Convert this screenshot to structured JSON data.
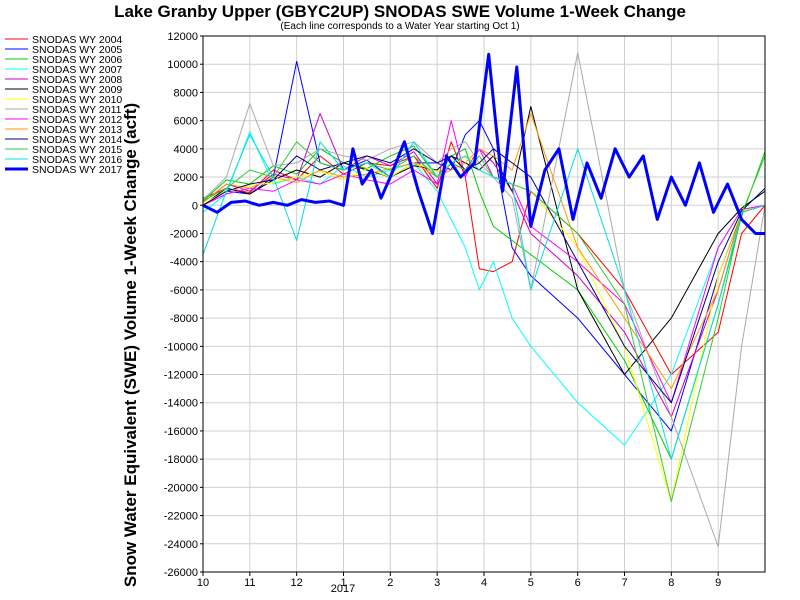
{
  "chart_data": {
    "type": "line",
    "title": "Lake Granby Upper (GBYC2UP) SNODAS SWE Volume 1-Week Change",
    "subtitle": "(Each line corresponds to a Water Year starting Oct 1)",
    "ylabel": "Snow Water Equivalent (SWE) Volume 1-Week Change (acft)",
    "xlabel": "",
    "x_ticks": [
      "10",
      "11",
      "12",
      "1",
      "2",
      "3",
      "4",
      "5",
      "6",
      "7",
      "8",
      "9"
    ],
    "x_year_label": "2017",
    "ylim": [
      -26000,
      12000
    ],
    "y_ticks": [
      12000,
      10000,
      8000,
      6000,
      4000,
      2000,
      0,
      -2000,
      -4000,
      -6000,
      -8000,
      -10000,
      -12000,
      -14000,
      -16000,
      -18000,
      -20000,
      -22000,
      -24000,
      -26000
    ],
    "grid": true,
    "legend_position": "left",
    "series": [
      {
        "name": "SNODAS WY 2004",
        "color": "#ff0000",
        "x": [
          0,
          0.5,
          1.0,
          1.5,
          2.0,
          2.5,
          3.0,
          3.5,
          4.0,
          4.5,
          5.0,
          5.3,
          5.6,
          5.9,
          6.2,
          6.6,
          7.0,
          8.0,
          9.0,
          10.0,
          11.0,
          11.5,
          12.0
        ],
        "values": [
          500,
          1200,
          900,
          2500,
          1800,
          3500,
          2200,
          3000,
          2800,
          3500,
          1200,
          4500,
          2000,
          -4500,
          -4700,
          -4000,
          1000,
          -2000,
          -6000,
          -12000,
          -9000,
          -2000,
          0
        ]
      },
      {
        "name": "SNODAS WY 2005",
        "color": "#0000ff",
        "x": [
          0,
          0.5,
          1.0,
          1.5,
          2.0,
          2.5,
          3.0,
          3.5,
          4.0,
          4.5,
          5.0,
          5.3,
          5.6,
          5.9,
          6.2,
          6.6,
          7.0,
          8.0,
          9.0,
          10.0,
          11.0,
          11.5,
          12.0
        ],
        "values": [
          0,
          1000,
          800,
          2000,
          10200,
          3000,
          2500,
          3200,
          2000,
          3000,
          3000,
          2500,
          5000,
          6000,
          4000,
          -3000,
          -5000,
          -8000,
          -12000,
          -16000,
          -5000,
          -500,
          0
        ]
      },
      {
        "name": "SNODAS WY 2006",
        "color": "#00cc00",
        "x": [
          0,
          0.5,
          1.0,
          1.5,
          2.0,
          2.5,
          3.0,
          3.5,
          4.0,
          4.5,
          5.0,
          5.3,
          5.6,
          5.9,
          6.2,
          6.6,
          7.0,
          8.0,
          9.0,
          10.0,
          11.0,
          11.5,
          12.0
        ],
        "values": [
          300,
          1800,
          1500,
          2800,
          2200,
          4000,
          3000,
          2600,
          3500,
          4200,
          2000,
          3500,
          4000,
          1000,
          -1500,
          -2500,
          -3500,
          -6000,
          -11000,
          -18000,
          -7000,
          -800,
          3800
        ]
      },
      {
        "name": "SNODAS WY 2007",
        "color": "#00ffff",
        "x": [
          0,
          0.5,
          1.0,
          1.5,
          2.0,
          2.5,
          3.0,
          3.5,
          4.0,
          4.5,
          5.0,
          5.3,
          5.6,
          5.9,
          6.2,
          6.6,
          7.0,
          8.0,
          9.0,
          10.0,
          11.0,
          11.5,
          12.0
        ],
        "values": [
          -500,
          800,
          5200,
          1500,
          2000,
          1500,
          2800,
          2000,
          2500,
          3000,
          1000,
          -1000,
          -3000,
          -6000,
          -4000,
          -8000,
          -10000,
          -14000,
          -17000,
          -12000,
          -3000,
          -300,
          0
        ]
      },
      {
        "name": "SNODAS WY 2008",
        "color": "#cc00cc",
        "x": [
          0,
          0.5,
          1.0,
          1.5,
          2.0,
          2.5,
          3.0,
          3.5,
          4.0,
          4.5,
          5.0,
          5.3,
          5.6,
          5.9,
          6.2,
          6.6,
          7.0,
          8.0,
          9.0,
          10.0,
          11.0,
          11.5,
          12.0
        ],
        "values": [
          200,
          1500,
          1000,
          2200,
          1800,
          6500,
          2500,
          3500,
          2800,
          3800,
          1500,
          3000,
          2500,
          4000,
          3000,
          1000,
          -2000,
          -5000,
          -9000,
          -15000,
          -6000,
          -500,
          0
        ]
      },
      {
        "name": "SNODAS WY 2009",
        "color": "#000000",
        "x": [
          0,
          0.5,
          1.0,
          1.5,
          2.0,
          2.5,
          3.0,
          3.5,
          4.0,
          4.5,
          5.0,
          5.3,
          5.6,
          5.9,
          6.2,
          6.6,
          7.0,
          8.0,
          9.0,
          10.0,
          11.0,
          11.5,
          12.0
        ],
        "values": [
          0,
          1200,
          800,
          1800,
          2500,
          2000,
          3000,
          2500,
          2000,
          2800,
          2500,
          3500,
          3000,
          2500,
          3500,
          1000,
          7000,
          -6000,
          -12000,
          -8000,
          -2000,
          -200,
          1000
        ]
      },
      {
        "name": "SNODAS WY 2010",
        "color": "#ffff00",
        "x": [
          0,
          0.5,
          1.0,
          1.5,
          2.0,
          2.5,
          3.0,
          3.5,
          4.0,
          4.5,
          5.0,
          5.3,
          5.6,
          5.9,
          6.2,
          6.6,
          7.0,
          8.0,
          9.0,
          10.0,
          11.0,
          11.5,
          12.0
        ],
        "values": [
          100,
          1000,
          1400,
          1600,
          2000,
          2400,
          1800,
          2600,
          2000,
          3000,
          2400,
          2800,
          3400,
          3000,
          2000,
          1500,
          1000,
          -3000,
          -10000,
          -21000,
          -5000,
          -400,
          0
        ]
      },
      {
        "name": "SNODAS WY 2011",
        "color": "#aaaaaa",
        "x": [
          0,
          0.5,
          1.0,
          1.5,
          2.0,
          2.5,
          3.0,
          3.5,
          4.0,
          4.5,
          5.0,
          5.3,
          5.6,
          5.9,
          6.2,
          6.6,
          7.0,
          8.0,
          9.0,
          10.0,
          11.0,
          11.5,
          12.0
        ],
        "values": [
          400,
          2000,
          7200,
          2800,
          3000,
          4000,
          3500,
          3200,
          4000,
          4500,
          3000,
          4000,
          4500,
          3000,
          2000,
          500,
          -6000,
          10800,
          -6000,
          -15000,
          -24200,
          -10000,
          0
        ]
      },
      {
        "name": "SNODAS WY 2012",
        "color": "#ff00ff",
        "x": [
          0,
          0.5,
          1.0,
          1.5,
          2.0,
          2.5,
          3.0,
          3.5,
          4.0,
          4.5,
          5.0,
          5.3,
          5.6,
          5.9,
          6.2,
          6.6,
          7.0,
          8.0,
          9.0,
          10.0,
          11.0,
          11.5,
          12.0
        ],
        "values": [
          0,
          800,
          1200,
          1000,
          1800,
          1500,
          2200,
          1800,
          1500,
          2500,
          1500,
          6000,
          2000,
          4000,
          2000,
          1500,
          -1500,
          -4000,
          -7000,
          -14000,
          -3000,
          -300,
          0
        ]
      },
      {
        "name": "SNODAS WY 2013",
        "color": "#ff9900",
        "x": [
          0,
          0.5,
          1.0,
          1.5,
          2.0,
          2.5,
          3.0,
          3.5,
          4.0,
          4.5,
          5.0,
          5.3,
          5.6,
          5.9,
          6.2,
          6.6,
          7.0,
          8.0,
          9.0,
          10.0,
          11.0,
          11.5,
          12.0
        ],
        "values": [
          200,
          1500,
          1200,
          2000,
          1600,
          2500,
          2000,
          2200,
          2600,
          3000,
          2000,
          2500,
          3000,
          4000,
          3500,
          2500,
          6500,
          -3000,
          -8000,
          -13000,
          -6000,
          -500,
          0
        ]
      },
      {
        "name": "SNODAS WY 2014",
        "color": "#000080",
        "x": [
          0,
          0.5,
          1.0,
          1.5,
          2.0,
          2.5,
          3.0,
          3.5,
          4.0,
          4.5,
          5.0,
          5.3,
          5.6,
          5.9,
          6.2,
          6.6,
          7.0,
          8.0,
          9.0,
          10.0,
          11.0,
          11.5,
          12.0
        ],
        "values": [
          0,
          1000,
          1500,
          1800,
          3500,
          2500,
          3000,
          3500,
          3000,
          4000,
          3000,
          3500,
          2500,
          3000,
          4000,
          3000,
          2000,
          -4000,
          -10000,
          -14000,
          -4000,
          -400,
          1200
        ]
      },
      {
        "name": "SNODAS WY 2015",
        "color": "#33cc33",
        "x": [
          0,
          0.5,
          1.0,
          1.5,
          2.0,
          2.5,
          3.0,
          3.5,
          4.0,
          4.5,
          5.0,
          5.3,
          5.6,
          5.9,
          6.2,
          6.6,
          7.0,
          8.0,
          9.0,
          10.0,
          11.0,
          11.5,
          12.0
        ],
        "values": [
          300,
          1200,
          2500,
          2000,
          4500,
          3000,
          2500,
          3000,
          2500,
          3500,
          2000,
          3000,
          2500,
          3500,
          2000,
          1500,
          1000,
          -2000,
          -7000,
          -21000,
          -8000,
          -600,
          3500
        ]
      },
      {
        "name": "SNODAS WY 2016",
        "color": "#00e0e0",
        "x": [
          0,
          0.5,
          1.0,
          1.5,
          2.0,
          2.5,
          3.0,
          3.5,
          4.0,
          4.5,
          5.0,
          5.3,
          5.6,
          5.9,
          6.2,
          6.6,
          7.0,
          8.0,
          9.0,
          10.0,
          11.0,
          11.5,
          12.0
        ],
        "values": [
          -3500,
          1000,
          5000,
          2000,
          -2500,
          4500,
          2500,
          3000,
          2000,
          4500,
          2000,
          3000,
          3500,
          2500,
          2000,
          1500,
          -6000,
          4000,
          -6000,
          -18000,
          -7000,
          -500,
          0
        ]
      },
      {
        "name": "SNODAS WY 2017",
        "color": "#0000ff",
        "x": [
          0,
          0.3,
          0.6,
          0.9,
          1.2,
          1.5,
          1.8,
          2.1,
          2.4,
          2.7,
          3.0,
          3.2,
          3.4,
          3.6,
          3.8,
          4.0,
          4.3,
          4.6,
          4.9,
          5.2,
          5.5,
          5.8,
          6.1,
          6.4,
          6.7,
          7.0,
          7.3,
          7.6,
          7.9,
          8.2,
          8.5,
          8.8,
          9.1,
          9.4,
          9.7,
          10.0,
          10.3,
          10.6,
          10.9,
          11.2,
          11.5,
          11.8,
          12.0
        ],
        "values": [
          0,
          -500,
          200,
          300,
          0,
          200,
          0,
          400,
          200,
          300,
          0,
          4000,
          1500,
          2500,
          500,
          2000,
          4500,
          1000,
          -2000,
          3500,
          2000,
          3000,
          10700,
          1000,
          9800,
          -1500,
          2500,
          4000,
          -1000,
          3000,
          500,
          4000,
          2000,
          3500,
          -1000,
          2000,
          0,
          3000,
          -500,
          1500,
          -1000,
          -2000,
          -2000
        ]
      }
    ]
  }
}
